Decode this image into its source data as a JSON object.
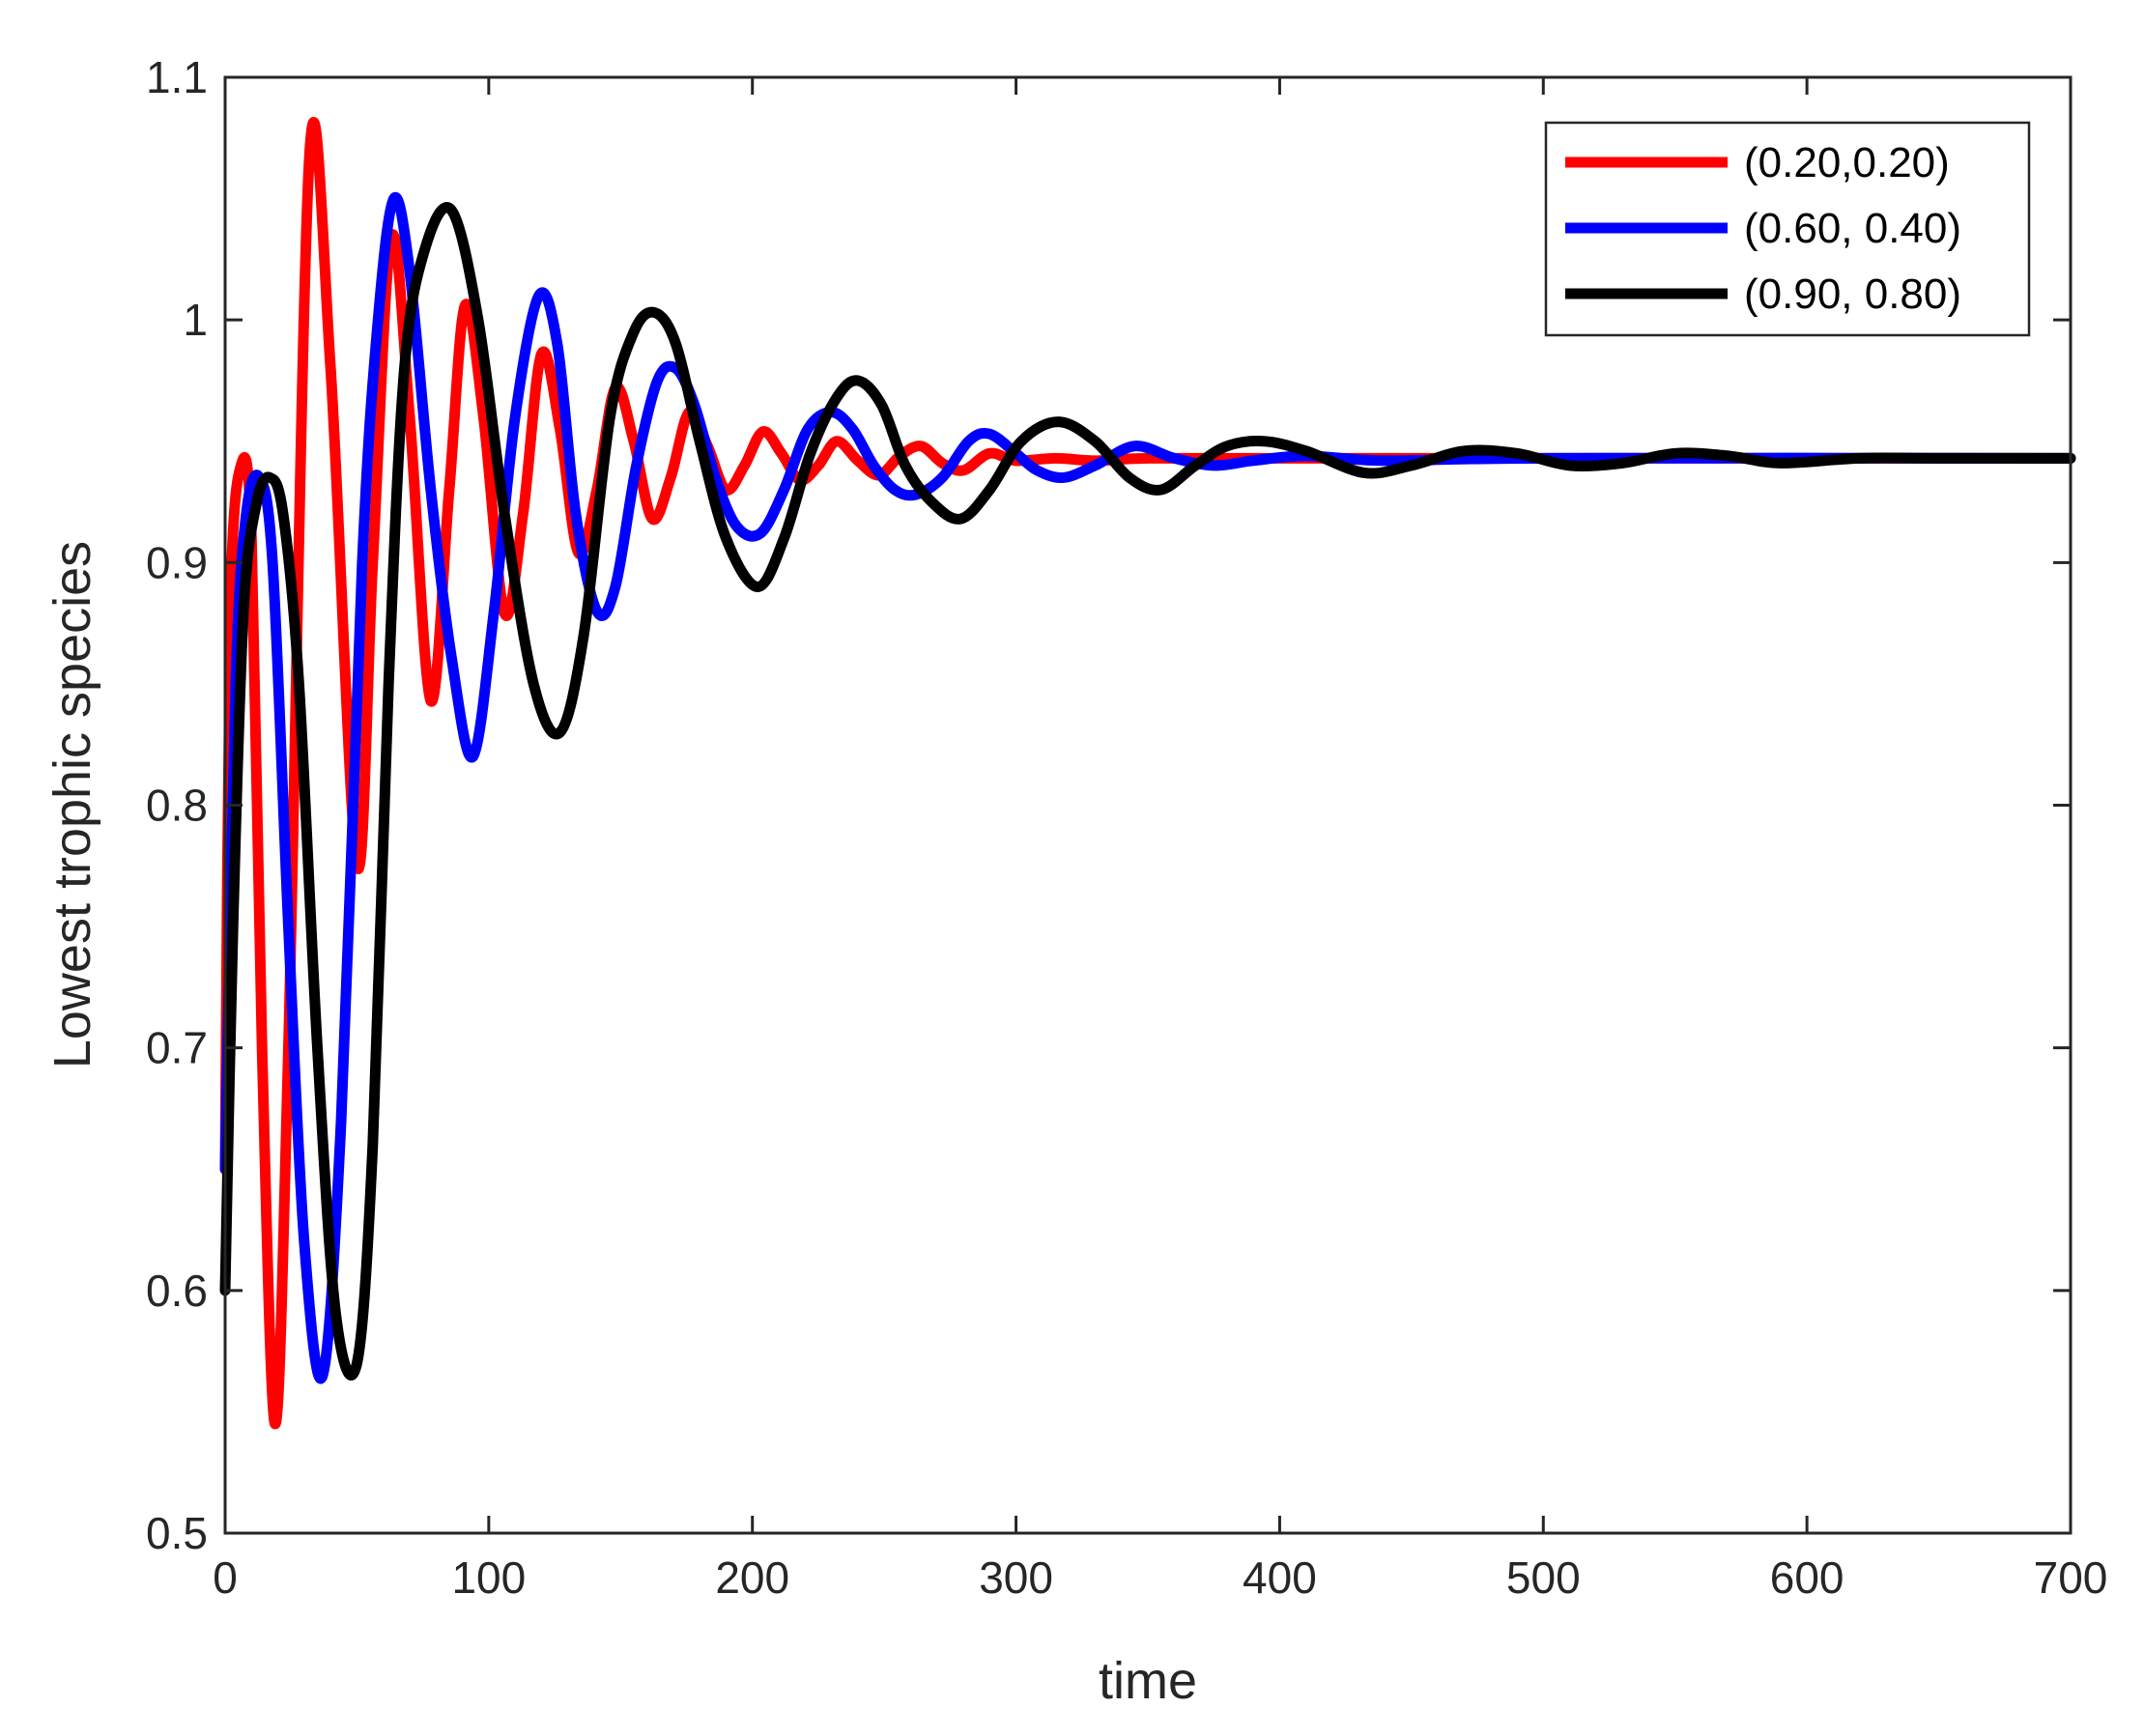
{
  "chart_data": {
    "type": "line",
    "title": "",
    "xlabel": "time",
    "ylabel": "Lowest trophic species",
    "xlim": [
      0,
      700
    ],
    "ylim": [
      0.5,
      1.1
    ],
    "xticks": [
      "0",
      "100",
      "200",
      "300",
      "400",
      "500",
      "600",
      "700"
    ],
    "yticks": [
      "0.5",
      "0.6",
      "0.7",
      "0.8",
      "0.9",
      "1",
      "1.1"
    ],
    "grid": false,
    "legend_position": "top-right",
    "series": [
      {
        "name": "(0.20,0.20)",
        "color": "#ff0000",
        "x": [
          0,
          2,
          6,
          10,
          14,
          19,
          24,
          32,
          40,
          50,
          56,
          63,
          70,
          78,
          85,
          91,
          98,
          106,
          113,
          120,
          127,
          134,
          141,
          148,
          155,
          162,
          169,
          176,
          183,
          190,
          197,
          204,
          211,
          218,
          225,
          232,
          240,
          248,
          256,
          264,
          272,
          280,
          290,
          300,
          315,
          330,
          350,
          400,
          500,
          700
        ],
        "y": [
          0.65,
          0.88,
          0.94,
          0.91,
          0.7,
          0.545,
          0.7,
          1.068,
          0.98,
          0.775,
          0.9,
          1.034,
          0.96,
          0.843,
          0.93,
          1.006,
          0.96,
          0.879,
          0.92,
          0.986,
          0.955,
          0.904,
          0.93,
          0.972,
          0.95,
          0.918,
          0.935,
          0.962,
          0.948,
          0.93,
          0.94,
          0.954,
          0.945,
          0.934,
          0.94,
          0.95,
          0.942,
          0.936,
          0.944,
          0.948,
          0.941,
          0.938,
          0.945,
          0.942,
          0.943,
          0.942,
          0.943,
          0.943,
          0.943,
          0.943
        ]
      },
      {
        "name": "(0.60, 0.40)",
        "color": "#0000ff",
        "x": [
          0,
          4,
          8,
          13,
          18,
          24,
          30,
          37,
          44,
          52,
          58,
          64,
          70,
          78,
          86,
          94,
          102,
          110,
          119,
          126,
          133,
          141,
          148,
          156,
          164,
          171,
          178,
          186,
          194,
          203,
          212,
          221,
          230,
          238,
          246,
          254,
          262,
          272,
          282,
          290,
          300,
          308,
          318,
          330,
          345,
          360,
          375,
          390,
          410,
          440,
          500,
          700
        ],
        "y": [
          0.65,
          0.85,
          0.92,
          0.935,
          0.9,
          0.75,
          0.62,
          0.565,
          0.67,
          0.9,
          1.0,
          1.05,
          1.02,
          0.93,
          0.86,
          0.82,
          0.88,
          0.96,
          1.01,
          0.99,
          0.92,
          0.88,
          0.89,
          0.94,
          0.975,
          0.98,
          0.965,
          0.935,
          0.915,
          0.912,
          0.93,
          0.955,
          0.962,
          0.955,
          0.94,
          0.93,
          0.928,
          0.935,
          0.95,
          0.953,
          0.945,
          0.938,
          0.935,
          0.94,
          0.948,
          0.943,
          0.94,
          0.942,
          0.944,
          0.942,
          0.943,
          0.943
        ]
      },
      {
        "name": "(0.90, 0.80)",
        "color": "#000000",
        "x": [
          0,
          3,
          7,
          12,
          17,
          22,
          28,
          35,
          42,
          50,
          56,
          62,
          68,
          76,
          86,
          96,
          106,
          117,
          127,
          136,
          146,
          155,
          163,
          171,
          180,
          190,
          202,
          212,
          222,
          232,
          240,
          249,
          258,
          268,
          279,
          290,
          302,
          316,
          330,
          343,
          355,
          368,
          380,
          394,
          410,
          432,
          450,
          470,
          490,
          510,
          530,
          550,
          570,
          590,
          620,
          650,
          700
        ],
        "y": [
          0.6,
          0.75,
          0.88,
          0.925,
          0.935,
          0.92,
          0.85,
          0.7,
          0.59,
          0.57,
          0.66,
          0.85,
          0.98,
          1.03,
          1.045,
          1.0,
          0.92,
          0.85,
          0.83,
          0.87,
          0.96,
          0.995,
          1.003,
          0.99,
          0.95,
          0.91,
          0.89,
          0.91,
          0.945,
          0.968,
          0.975,
          0.965,
          0.94,
          0.925,
          0.918,
          0.93,
          0.95,
          0.958,
          0.95,
          0.935,
          0.93,
          0.94,
          0.948,
          0.95,
          0.946,
          0.937,
          0.94,
          0.946,
          0.945,
          0.94,
          0.941,
          0.945,
          0.944,
          0.941,
          0.943,
          0.943,
          0.943
        ]
      }
    ]
  }
}
